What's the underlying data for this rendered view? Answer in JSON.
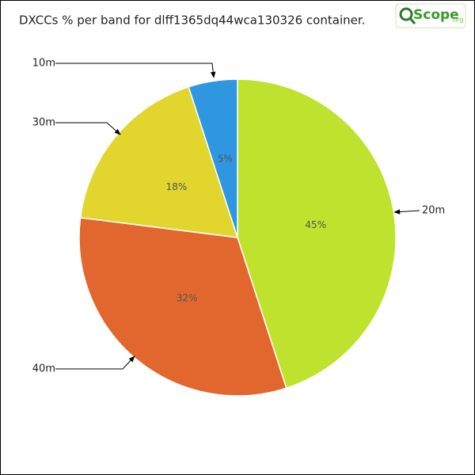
{
  "chart_data": {
    "type": "pie",
    "title": "DXCCs % per band for dlff1365dq44wca130326 container.",
    "logo": {
      "text": "Scope",
      "suffix": ".org"
    },
    "categories": [
      "20m",
      "40m",
      "30m",
      "10m"
    ],
    "values": [
      45,
      32,
      18,
      5
    ],
    "value_labels": [
      "45%",
      "32%",
      "18%",
      "5%"
    ],
    "colors": [
      "#bee22e",
      "#e2672f",
      "#e2d52e",
      "#2f97e2"
    ]
  }
}
